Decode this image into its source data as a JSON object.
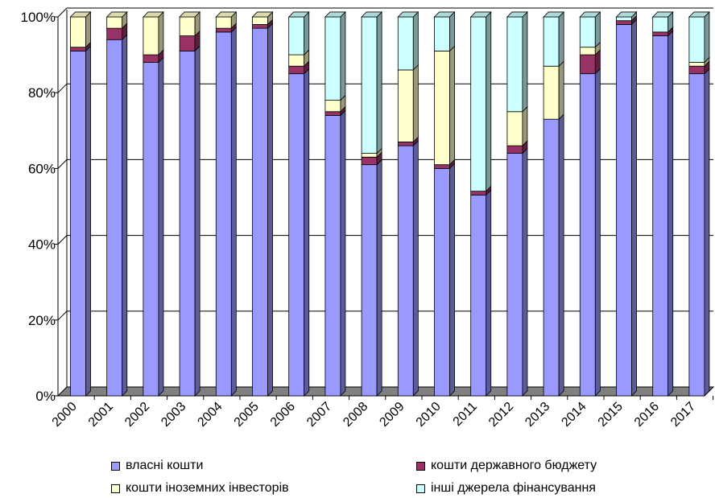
{
  "chart_data": {
    "type": "bar",
    "stacked": true,
    "percent_stacked": true,
    "three_d": true,
    "categories": [
      "2000",
      "2001",
      "2002",
      "2003",
      "2004",
      "2005",
      "2006",
      "2007",
      "2008",
      "2009",
      "2010",
      "2011",
      "2012",
      "2013",
      "2014",
      "2015",
      "2016",
      "2017"
    ],
    "series": [
      {
        "name": "власні кошти",
        "color": "#9999ff",
        "values": [
          91,
          94,
          88,
          91,
          96,
          97,
          85,
          74,
          61,
          66,
          60,
          53,
          64,
          73,
          85,
          98,
          95,
          85
        ]
      },
      {
        "name": "кошти державного бюджету",
        "color": "#993366",
        "values": [
          1,
          3,
          2,
          4,
          1,
          1,
          2,
          1,
          2,
          1,
          1,
          1,
          2,
          0,
          5,
          1,
          1,
          2
        ]
      },
      {
        "name": "кошти іноземних інвесторів",
        "color": "#ffffcc",
        "values": [
          8,
          3,
          10,
          5,
          3,
          2,
          3,
          3,
          1,
          19,
          30,
          0,
          9,
          14,
          2,
          0,
          0,
          1
        ]
      },
      {
        "name": "інші джерела фінансування",
        "color": "#ccffff",
        "values": [
          0,
          0,
          0,
          0,
          0,
          0,
          10,
          22,
          36,
          14,
          9,
          46,
          25,
          13,
          8,
          1,
          4,
          12
        ]
      }
    ],
    "y_ticks": [
      "0%",
      "20%",
      "40%",
      "60%",
      "80%",
      "100%"
    ],
    "ylim": [
      0,
      100
    ],
    "grid": true,
    "legend_position": "bottom"
  }
}
